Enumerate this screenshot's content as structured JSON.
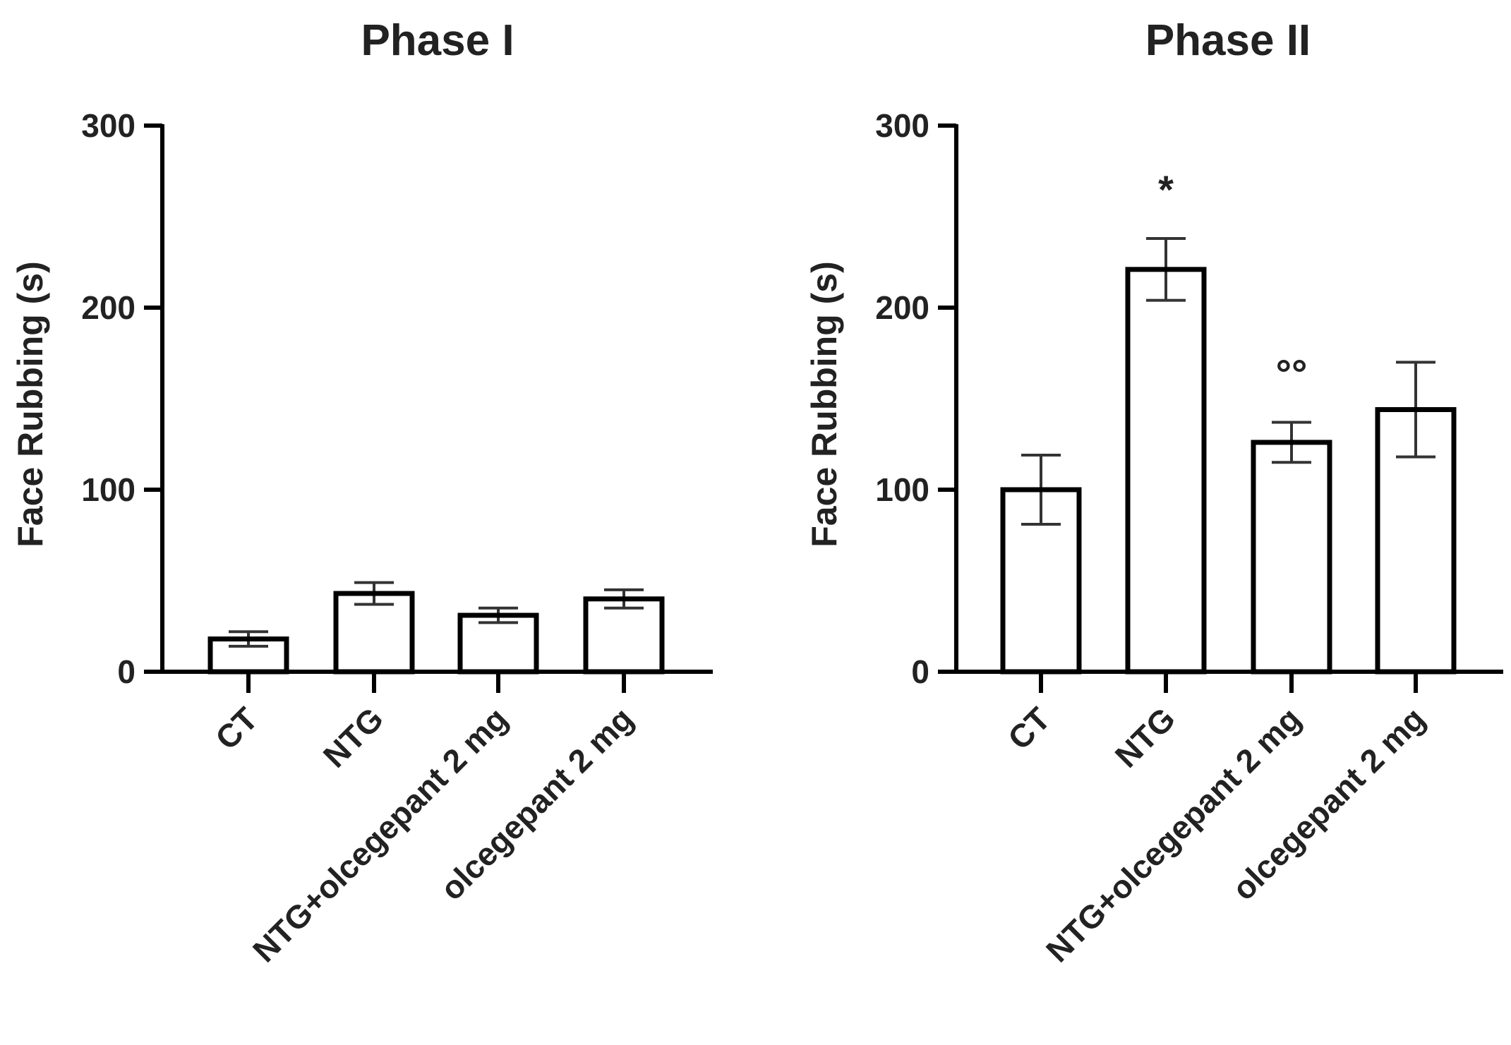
{
  "chart_data": [
    {
      "type": "bar",
      "title": "Phase I",
      "ylabel": "Face Rubbing (s)",
      "xlabel": "",
      "ylim": [
        0,
        300
      ],
      "yticks": [
        "0",
        "100",
        "200",
        "300"
      ],
      "categories": [
        "CT",
        "NTG",
        "NTG+olcegepant 2 mg",
        "olcegepant 2 mg"
      ],
      "values": [
        18,
        43,
        31,
        40
      ],
      "errors": [
        4,
        6,
        4,
        5
      ],
      "annotations": [
        "",
        "",
        "",
        ""
      ]
    },
    {
      "type": "bar",
      "title": "Phase II",
      "ylabel": "Face Rubbing (s)",
      "xlabel": "",
      "ylim": [
        0,
        300
      ],
      "yticks": [
        "0",
        "100",
        "200",
        "300"
      ],
      "categories": [
        "CT",
        "NTG",
        "NTG+olcegepant 2 mg",
        "olcegepant 2 mg"
      ],
      "values": [
        100,
        221,
        126,
        144
      ],
      "errors": [
        19,
        17,
        11,
        26
      ],
      "annotations": [
        "",
        "*",
        "°°",
        ""
      ]
    }
  ]
}
